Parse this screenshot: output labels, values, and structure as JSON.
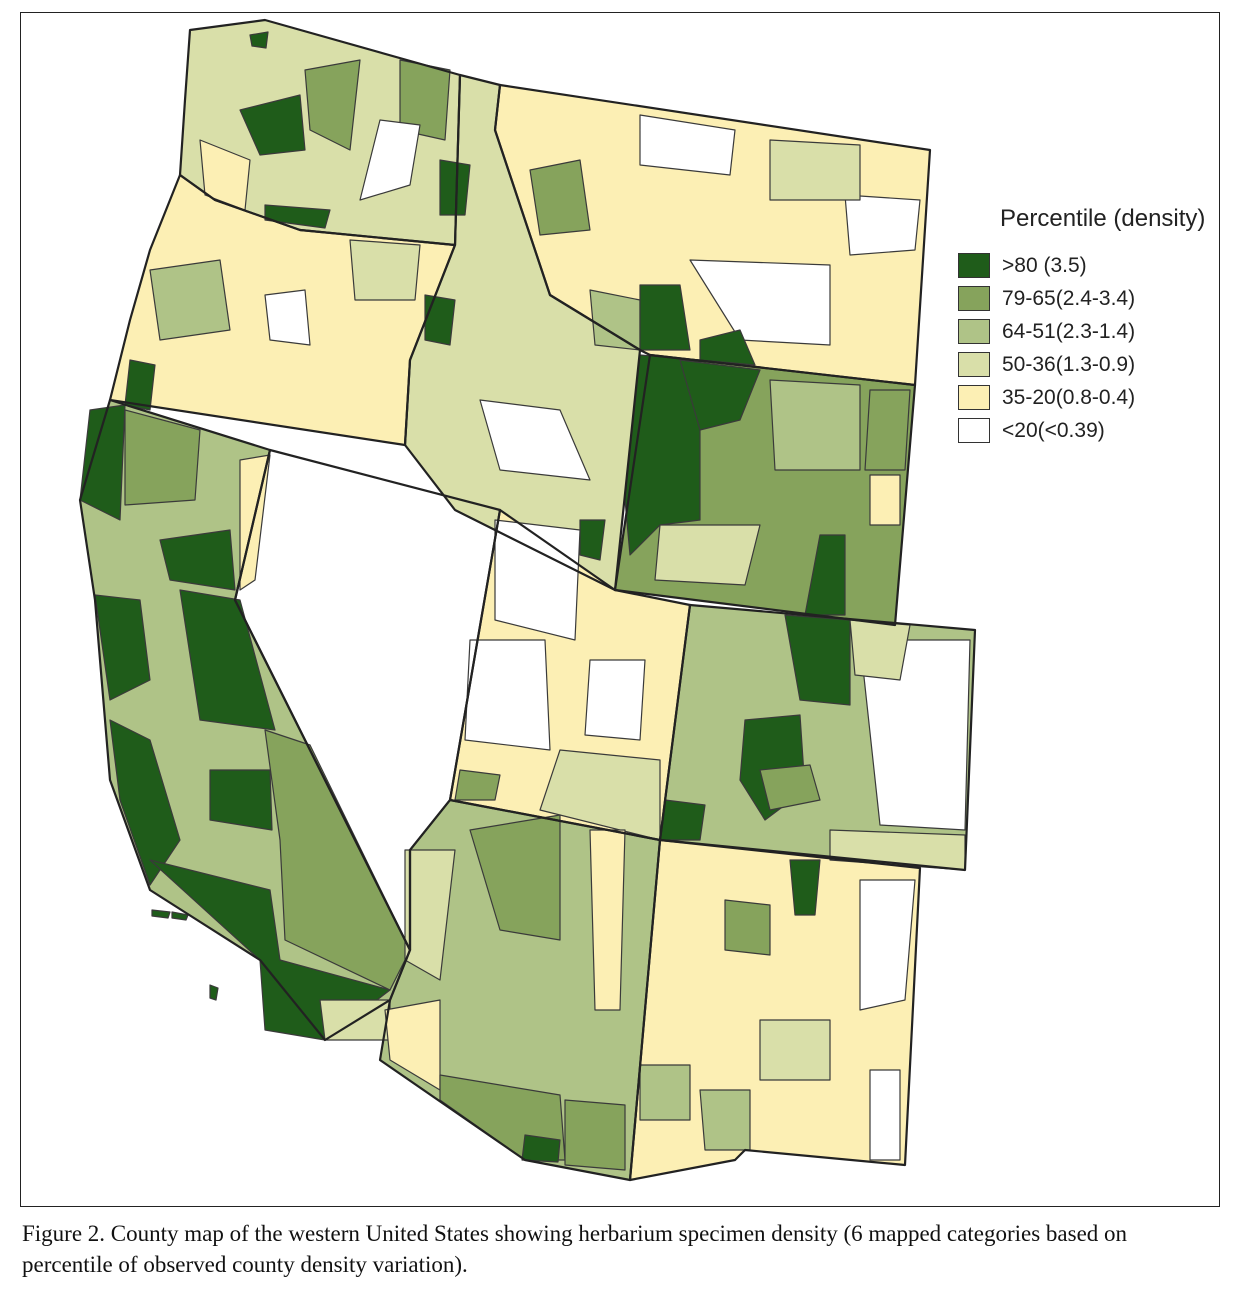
{
  "legend": {
    "title": "Percentile (density)",
    "items": [
      {
        "label": ">80 (3.5)",
        "color": "#1f5c1a"
      },
      {
        "label": "79-65(2.4-3.4)",
        "color": "#86a35c"
      },
      {
        "label": "64-51(2.3-1.4)",
        "color": "#afc387"
      },
      {
        "label": "50-36(1.3-0.9)",
        "color": "#d9dfa9"
      },
      {
        "label": "35-20(0.8-0.4)",
        "color": "#fcefb4"
      },
      {
        "label": "<20(<0.39)",
        "color": "#ffffff"
      }
    ]
  },
  "caption": "Figure 2.  County map of the western United States showing herbarium specimen density (6 mapped categories based on percentile of observed county density variation)."
}
